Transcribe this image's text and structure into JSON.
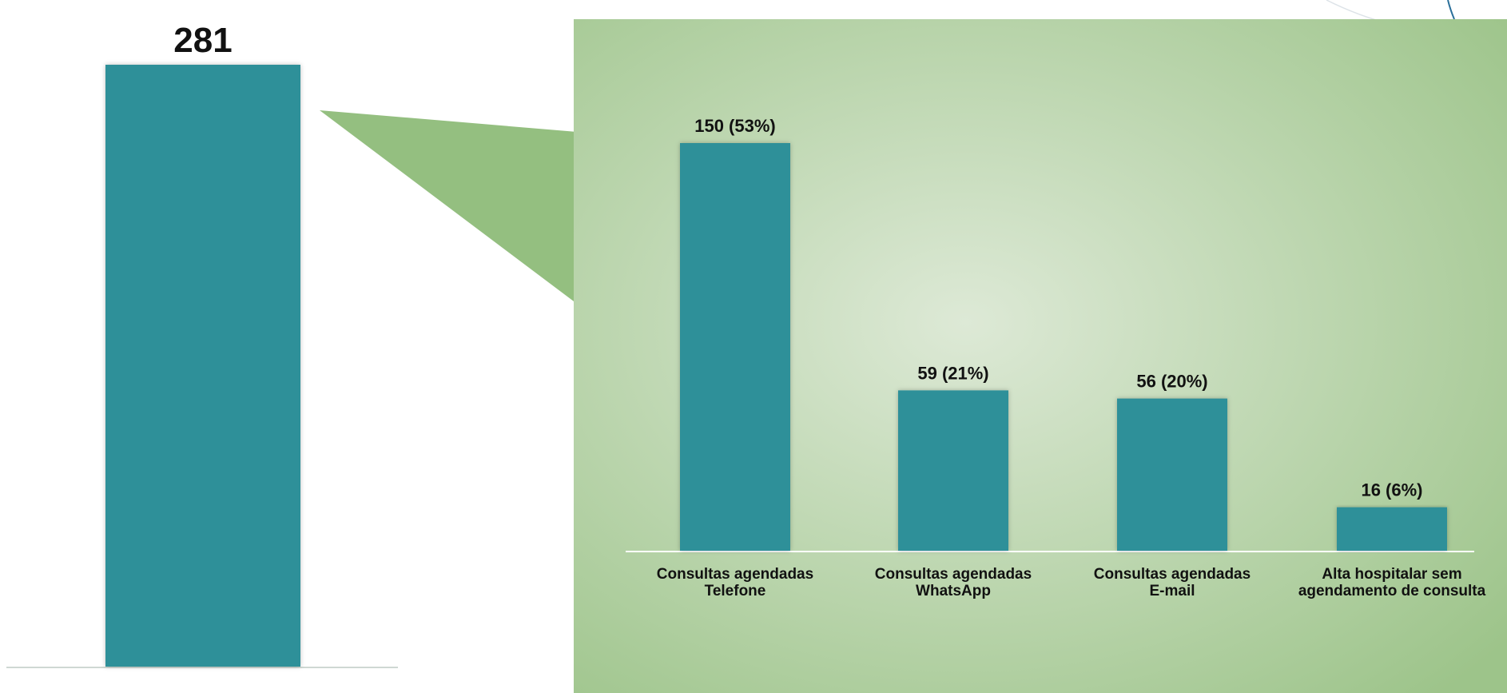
{
  "colors": {
    "bar": "#2e9099",
    "panel_center": "#dde9d6",
    "panel_edge": "#9dc48a",
    "callout": "#94bf80",
    "axis": "#cfd8d3"
  },
  "chart_data": [
    {
      "type": "bar",
      "categories": [
        ""
      ],
      "values": [
        281
      ],
      "data_labels": [
        "281"
      ],
      "ylim": [
        0,
        281
      ]
    },
    {
      "type": "bar",
      "categories": [
        "Consultas agendadas Telefone",
        "Consultas agendadas\nWhatsApp",
        "Consultas agendadas\nE-mail",
        "Alta hospitalar sem\nagendamento de consulta"
      ],
      "values": [
        150,
        59,
        56,
        16
      ],
      "percentages": [
        53,
        21,
        20,
        6
      ],
      "data_labels": [
        "150 (53%)",
        "59 (21%)",
        "56 (20%)",
        "16 (6%)"
      ],
      "ylim": [
        0,
        150
      ]
    }
  ]
}
